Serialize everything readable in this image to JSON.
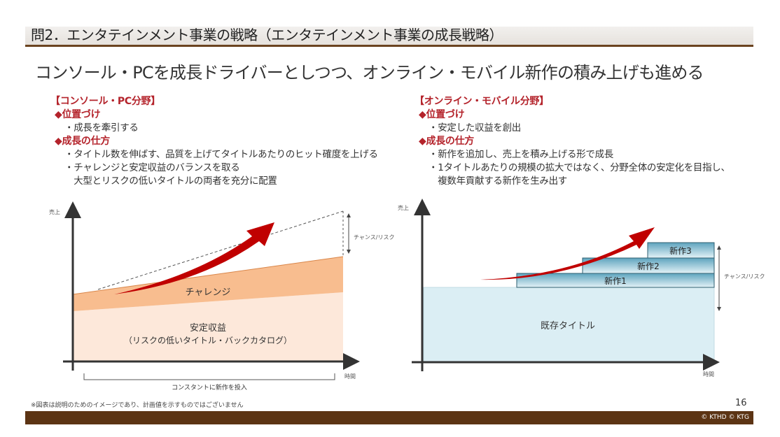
{
  "header": {
    "title": "問2．エンタテインメント事業の戦略（エンタテインメント事業の成長戦略）",
    "subtitle": "コンソール・PCを成長ドライバーとしつつ、オンライン・モバイル新作の積み上げも進める"
  },
  "left": {
    "heading": "【コンソール・PC分野】",
    "position_heading": "◆位置づけ",
    "position_items": [
      "・成長を牽引する"
    ],
    "growth_heading": "◆成長の仕方",
    "growth_items": [
      "・タイトル数を伸ばす、品質を上げてタイトルあたりのヒット確度を上げる",
      "・チャレンジと安定収益のバランスを取る",
      "　大型とリスクの低いタイトルの両者を充分に配置"
    ],
    "chart": {
      "y_label": "売上",
      "x_label": "時間",
      "challenge_label": "チャレンジ",
      "stable_label": "安定収益",
      "stable_sublabel": "（リスクの低いタイトル・バックカタログ）",
      "risk_label": "チャンス/リスク",
      "brace_label": "コンスタントに新作を投入"
    }
  },
  "right": {
    "heading": "【オンライン・モバイル分野】",
    "position_heading": "◆位置づけ",
    "position_items": [
      "・安定した収益を創出"
    ],
    "growth_heading": "◆成長の仕方",
    "growth_items": [
      "・新作を追加し、売上を積み上げる形で成長",
      "・1タイトルあたりの規模の拡大ではなく、分野全体の安定化を目指し、",
      "　複数年貢献する新作を生み出す"
    ],
    "chart": {
      "y_label": "売上",
      "x_label": "時間",
      "existing_label": "既存タイトル",
      "new1": "新作1",
      "new2": "新作2",
      "new3": "新作3",
      "risk_label": "チャンス/リスク"
    }
  },
  "footer": {
    "note": "※図表は説明のためのイメージであり、計画値を示すものではございません",
    "page": "16",
    "copyright": "© KTHD © KTG"
  },
  "colors": {
    "accent_red": "#b4232b",
    "brown": "#5c3414",
    "challenge": "#f8bd8f",
    "stable": "#fde8da",
    "existing": "#dbeef4",
    "new_title": "#6aaec6"
  }
}
